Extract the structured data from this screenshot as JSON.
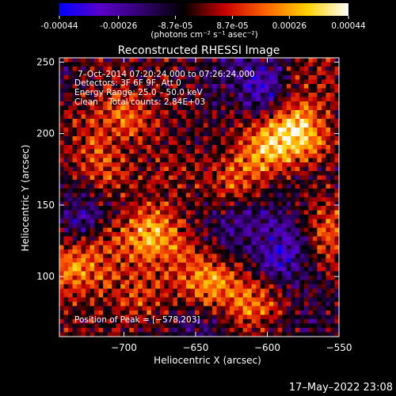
{
  "colorbar": {
    "tick_labels": [
      "-0.00044",
      "-0.00026",
      "-8.7e-05",
      "8.7e-05",
      "0.00026",
      "0.00044"
    ],
    "tick_values": [
      -0.00044,
      -0.00026,
      -8.7e-05,
      8.7e-05,
      0.00026,
      0.00044
    ],
    "range": [
      -0.00044,
      0.00044
    ],
    "units_label": "(photons cm⁻² s⁻¹ asec⁻²)",
    "colors": [
      "#0000ff",
      "#5a00c8",
      "#32006e",
      "#000000",
      "#c80000",
      "#ff6400",
      "#ffd200",
      "#ffffff"
    ]
  },
  "chart_data": {
    "type": "heatmap",
    "title": "Reconstructed RHESSI Image",
    "xlabel": "Heliocentric X (arcsec)",
    "ylabel": "Heliocentric Y (arcsec)",
    "xlim": [
      -745,
      -550
    ],
    "ylim": [
      58,
      253
    ],
    "x_ticks": [
      -700,
      -650,
      -600,
      -550
    ],
    "x_tick_labels": [
      "−700",
      "−650",
      "−600",
      "−550"
    ],
    "y_ticks": [
      100,
      150,
      200,
      250
    ],
    "y_tick_labels": [
      "100",
      "150",
      "200",
      "250"
    ],
    "grid": false,
    "colormap": "blue-purple-black-red-orange-yellow-white",
    "peak_position": [
      -578,
      203
    ],
    "annotations": [
      "7–Oct–2014 07:20:24.000 to 07:26:24.000",
      "Detectors: 3F 6F 9F, Att 0",
      "Energy Range: 25.0 – 50.0 keV",
      "Clean    Total counts: 2.84E+03",
      "Position of Peak = [−578,203]"
    ]
  },
  "footer": {
    "timestamp": "17–May–2022 23:08"
  }
}
